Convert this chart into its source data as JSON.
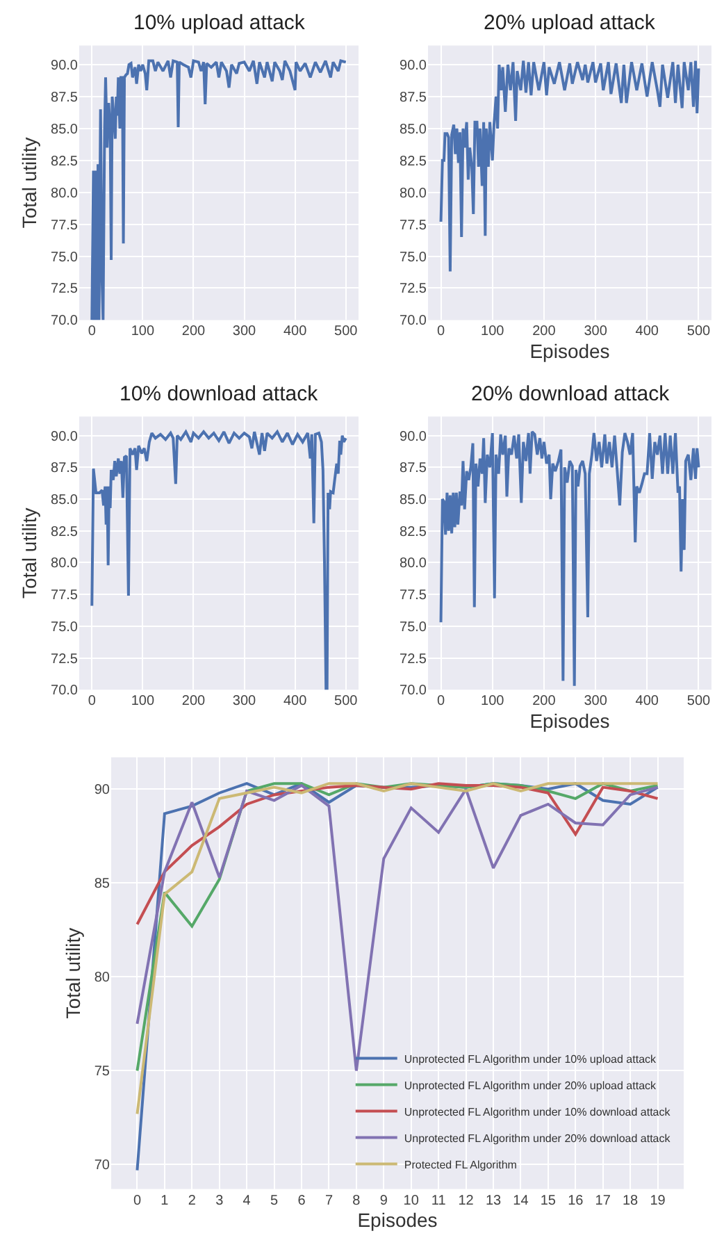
{
  "chart_data": [
    {
      "type": "line",
      "title": "10% upload attack",
      "ylabel": "Total utility",
      "xlim": [
        -25,
        525
      ],
      "xticks": [
        0,
        100,
        200,
        300,
        400,
        500
      ],
      "ylim": [
        70,
        91.5
      ],
      "yticks": [
        {
          "value": 70,
          "label": "70.0"
        },
        72.5,
        {
          "value": 75,
          "label": "75.0"
        },
        77.5,
        {
          "value": 80,
          "label": "80.0"
        },
        82.5,
        {
          "value": 85,
          "label": "85.0"
        },
        87.5,
        {
          "value": 90,
          "label": "90.0"
        }
      ],
      "grid": true,
      "legend": false,
      "series": [
        {
          "color": "#4c72b0",
          "x": [
            0,
            3,
            5,
            8,
            10,
            12,
            14,
            17,
            20,
            22,
            25,
            27,
            30,
            33,
            36,
            38,
            40,
            43,
            46,
            48,
            50,
            52,
            55,
            57,
            60,
            62,
            64,
            67,
            70,
            73,
            77,
            80,
            85,
            88,
            92,
            96,
            100,
            105,
            108,
            112,
            120,
            125,
            130,
            140,
            150,
            155,
            160,
            168,
            170,
            172,
            180,
            190,
            195,
            200,
            210,
            215,
            220,
            223,
            226,
            235,
            245,
            250,
            255,
            265,
            270,
            275,
            285,
            290,
            300,
            310,
            318,
            325,
            330,
            340,
            345,
            355,
            360,
            370,
            375,
            380,
            390,
            400,
            402,
            410,
            420,
            430,
            440,
            450,
            460,
            470,
            475,
            485,
            490,
            500
          ],
          "values": [
            70,
            81.7,
            70,
            81.7,
            70,
            82.2,
            70,
            86.5,
            73,
            70,
            85,
            89,
            83.5,
            87,
            85,
            74.7,
            87.5,
            86,
            84.2,
            87.5,
            86,
            89,
            85,
            89,
            89,
            76,
            89,
            89.2,
            89.3,
            90,
            90.1,
            89,
            89.8,
            88.5,
            90,
            89.5,
            90,
            89.3,
            88,
            90.3,
            90.3,
            89.5,
            90.2,
            89.5,
            90.3,
            89,
            90.3,
            90.2,
            85.1,
            90.2,
            90,
            89.8,
            89,
            90.3,
            90.2,
            89.5,
            90.2,
            86.9,
            90.1,
            89.8,
            90.2,
            89,
            90.2,
            89.5,
            88.2,
            90,
            89.3,
            90.1,
            90.2,
            89.5,
            90.3,
            88.5,
            90.2,
            89,
            90.2,
            88.7,
            90.2,
            89.5,
            88.8,
            90.3,
            89.5,
            88,
            90.2,
            89.5,
            90.1,
            89,
            90.2,
            89.4,
            90.3,
            89,
            90.2,
            89.5,
            90.3,
            90.2
          ]
        }
      ]
    },
    {
      "type": "line",
      "title": "20% upload attack",
      "xlabel": "Episodes",
      "xlim": [
        -25,
        525
      ],
      "xticks": [
        0,
        100,
        200,
        300,
        400,
        500
      ],
      "ylim": [
        70,
        91.5
      ],
      "yticks": [
        {
          "value": 70,
          "label": "70.0"
        },
        72.5,
        {
          "value": 75,
          "label": "75.0"
        },
        77.5,
        {
          "value": 80,
          "label": "80.0"
        },
        82.5,
        {
          "value": 85,
          "label": "85.0"
        },
        87.5,
        {
          "value": 90,
          "label": "90.0"
        }
      ],
      "grid": true,
      "legend": false,
      "series": [
        {
          "color": "#4c72b0",
          "x": [
            0,
            3,
            6,
            8,
            12,
            15,
            18,
            21,
            25,
            28,
            31,
            34,
            37,
            40,
            43,
            46,
            50,
            53,
            56,
            60,
            63,
            66,
            70,
            73,
            76,
            80,
            83,
            86,
            88,
            92,
            95,
            100,
            103,
            107,
            110,
            113,
            117,
            120,
            125,
            130,
            135,
            140,
            145,
            148,
            155,
            160,
            165,
            170,
            175,
            180,
            190,
            200,
            205,
            210,
            220,
            230,
            240,
            250,
            255,
            265,
            275,
            280,
            285,
            295,
            300,
            310,
            315,
            325,
            330,
            340,
            350,
            355,
            360,
            370,
            380,
            390,
            400,
            410,
            420,
            425,
            430,
            440,
            450,
            455,
            460,
            468,
            472,
            480,
            485,
            490,
            494,
            497,
            500
          ],
          "values": [
            77.7,
            82.5,
            82.5,
            84.6,
            84.6,
            84.3,
            73.8,
            84.5,
            85.3,
            83,
            85,
            82.3,
            84.7,
            76.5,
            85,
            83.5,
            85.5,
            81,
            83.5,
            82,
            78.3,
            85.5,
            85.5,
            82,
            85,
            80.5,
            85.5,
            76.6,
            85,
            82,
            85.5,
            82.5,
            85.3,
            87.5,
            85,
            90,
            88,
            89.8,
            86.3,
            90,
            88,
            90.2,
            85.6,
            89.5,
            88,
            90.3,
            87.8,
            90.2,
            87.6,
            90.2,
            88,
            90.2,
            87.6,
            89.8,
            88.5,
            90.2,
            88,
            90.1,
            88.5,
            90.2,
            88.8,
            90,
            88.6,
            90.2,
            88.6,
            90.1,
            88,
            90.2,
            87.7,
            90.1,
            87,
            90,
            87,
            90.2,
            88,
            90.1,
            87.5,
            90.2,
            88,
            86.7,
            90,
            87.4,
            90.2,
            87,
            90,
            86.6,
            90.2,
            88,
            90.2,
            86.7,
            90.3,
            86.2,
            89.7
          ]
        }
      ]
    },
    {
      "type": "line",
      "title": "10% download attack",
      "ylabel": "Total utility",
      "xlim": [
        -25,
        525
      ],
      "xticks": [
        0,
        100,
        200,
        300,
        400,
        500
      ],
      "ylim": [
        70,
        91.5
      ],
      "yticks": [
        {
          "value": 70,
          "label": "70.0"
        },
        72.5,
        {
          "value": 75,
          "label": "75.0"
        },
        77.5,
        {
          "value": 80,
          "label": "80.0"
        },
        82.5,
        {
          "value": 85,
          "label": "85.0"
        },
        87.5,
        {
          "value": 90,
          "label": "90.0"
        }
      ],
      "grid": true,
      "legend": false,
      "series": [
        {
          "color": "#4c72b0",
          "x": [
            0,
            3,
            8,
            15,
            20,
            23,
            26,
            28,
            30,
            32,
            34,
            36,
            38,
            42,
            45,
            48,
            52,
            55,
            58,
            61,
            64,
            68,
            72,
            75,
            80,
            85,
            88,
            92,
            98,
            103,
            108,
            113,
            118,
            125,
            135,
            145,
            155,
            160,
            165,
            168,
            175,
            185,
            195,
            200,
            210,
            220,
            230,
            240,
            250,
            260,
            270,
            280,
            290,
            300,
            310,
            315,
            320,
            330,
            335,
            340,
            345,
            355,
            365,
            375,
            385,
            395,
            405,
            415,
            425,
            430,
            433,
            437,
            440,
            447,
            452,
            455,
            458,
            461,
            463,
            465,
            468,
            470,
            475,
            478,
            482,
            485,
            488,
            490,
            493,
            496,
            500
          ],
          "values": [
            76.6,
            87.4,
            85.5,
            85.5,
            85.7,
            84.5,
            86,
            83,
            86,
            79.8,
            86,
            84.3,
            87.3,
            86.5,
            88,
            86.8,
            88.2,
            87,
            88,
            85.1,
            88.3,
            88.4,
            77.4,
            89,
            88.5,
            89,
            87.3,
            89.2,
            88.6,
            89,
            88,
            89.5,
            90.2,
            89.8,
            90.1,
            89.7,
            90.2,
            89.8,
            86.2,
            90,
            89.7,
            90.3,
            89.5,
            90.2,
            89.8,
            90.3,
            89.8,
            90.2,
            89.6,
            90.3,
            89.4,
            90.2,
            89.8,
            90.2,
            89.9,
            89,
            90.3,
            88.5,
            90.2,
            88.8,
            90.2,
            89.8,
            90.3,
            89.5,
            90.2,
            89.3,
            90.1,
            89.5,
            90.2,
            88.2,
            90.1,
            83.1,
            90.1,
            90.2,
            89.5,
            87.3,
            80,
            70,
            70,
            85.5,
            84.2,
            85.6,
            85.5,
            86.5,
            87.8,
            87,
            89.6,
            88.5,
            90,
            89.5,
            89.8
          ]
        }
      ]
    },
    {
      "type": "line",
      "title": "20% download attack",
      "xlabel": "Episodes",
      "xlim": [
        -25,
        525
      ],
      "xticks": [
        0,
        100,
        200,
        300,
        400,
        500
      ],
      "ylim": [
        70,
        91.5
      ],
      "yticks": [
        {
          "value": 70,
          "label": "70.0"
        },
        72.5,
        {
          "value": 75,
          "label": "75.0"
        },
        77.5,
        {
          "value": 80,
          "label": "80.0"
        },
        82.5,
        {
          "value": 85,
          "label": "85.0"
        },
        87.5,
        {
          "value": 90,
          "label": "90.0"
        }
      ],
      "grid": true,
      "legend": false,
      "series": [
        {
          "color": "#4c72b0",
          "x": [
            0,
            3,
            6,
            9,
            12,
            15,
            18,
            21,
            24,
            27,
            30,
            33,
            37,
            40,
            43,
            46,
            50,
            54,
            58,
            62,
            65,
            68,
            72,
            76,
            80,
            83,
            86,
            90,
            95,
            100,
            104,
            107,
            112,
            116,
            120,
            125,
            128,
            132,
            137,
            142,
            147,
            151,
            156,
            160,
            165,
            170,
            173,
            177,
            182,
            187,
            192,
            196,
            200,
            205,
            210,
            213,
            217,
            222,
            228,
            233,
            237,
            240,
            245,
            250,
            255,
            259,
            262,
            266,
            270,
            275,
            280,
            285,
            288,
            293,
            297,
            302,
            307,
            312,
            318,
            322,
            327,
            332,
            337,
            342,
            347,
            352,
            357,
            362,
            367,
            372,
            377,
            380,
            385,
            390,
            395,
            400,
            405,
            410,
            415,
            420,
            425,
            430,
            435,
            440,
            445,
            450,
            455,
            460,
            463,
            466,
            469,
            472,
            475,
            480,
            485,
            490,
            494,
            497,
            500
          ],
          "values": [
            75.3,
            85,
            84.8,
            82.2,
            85.5,
            82.5,
            85.3,
            82.3,
            85.5,
            82.8,
            85.5,
            83,
            85.6,
            84.5,
            88,
            84.2,
            87.2,
            86.5,
            87.5,
            89.4,
            76.5,
            87.8,
            86,
            88.2,
            87,
            89.8,
            84.7,
            88.5,
            87.5,
            90.2,
            77.2,
            88.5,
            87,
            90.1,
            88.5,
            90,
            85.2,
            89,
            88.5,
            90,
            88.2,
            90.1,
            84.7,
            89.5,
            88,
            90.2,
            87,
            90.3,
            90.1,
            88.5,
            89.8,
            88.2,
            89.5,
            87.8,
            88.5,
            85,
            87.8,
            87.2,
            88,
            88.9,
            70.7,
            87.5,
            86.3,
            88,
            87.6,
            70.3,
            87.3,
            86,
            87.6,
            88,
            87,
            75.7,
            87,
            88.5,
            90.2,
            88,
            89.5,
            87.5,
            90.1,
            87.8,
            89.5,
            87.5,
            90,
            87.3,
            84.5,
            88.7,
            90.2,
            89.5,
            88.5,
            90.2,
            81.6,
            86,
            85.5,
            86.2,
            87,
            87,
            90.2,
            86.6,
            89.5,
            88.5,
            90,
            87,
            90.2,
            87,
            90,
            87,
            90.2,
            85.5,
            86,
            79.3,
            85,
            81,
            88,
            88.5,
            86.5,
            89,
            86.6,
            89,
            87.5
          ]
        }
      ]
    },
    {
      "type": "line",
      "xlabel": "Episodes",
      "ylabel": "Total utility",
      "xlim": [
        -0.95,
        19.95
      ],
      "xticks": [
        0,
        1,
        2,
        3,
        4,
        5,
        6,
        7,
        8,
        9,
        10,
        11,
        12,
        13,
        14,
        15,
        16,
        17,
        18,
        19
      ],
      "ylim": [
        68.7,
        91.7
      ],
      "yticks": [
        70,
        75,
        80,
        85,
        90
      ],
      "grid": true,
      "legend": "bottom right",
      "x": [
        0,
        1,
        2,
        3,
        4,
        5,
        6,
        7,
        8,
        9,
        10,
        11,
        12,
        13,
        14,
        15,
        16,
        17,
        18,
        19
      ],
      "series": [
        {
          "name": "Unprotected FL Algorithm under 10% upload attack",
          "color": "#4c72b0",
          "values": [
            69.7,
            88.7,
            89.1,
            89.8,
            90.3,
            89.7,
            90.3,
            89.3,
            90.2,
            90.1,
            90.1,
            90.2,
            90.1,
            90.3,
            90.2,
            90.0,
            90.3,
            89.4,
            89.2,
            90.1
          ]
        },
        {
          "name": "Unprotected FL Algorithm under 20% upload attack",
          "color": "#55a868",
          "values": [
            75.0,
            84.5,
            82.7,
            85.2,
            89.9,
            90.3,
            90.3,
            89.7,
            90.3,
            90.1,
            90.3,
            90.2,
            90.1,
            90.3,
            90.2,
            89.9,
            89.5,
            90.3,
            89.9,
            90.2
          ]
        },
        {
          "name": "Unprotected FL Algorithm under 10% download attack",
          "color": "#c44e52",
          "values": [
            82.8,
            85.6,
            87.0,
            88.0,
            89.2,
            89.7,
            89.9,
            90.1,
            90.2,
            90.1,
            90.0,
            90.3,
            90.2,
            90.2,
            90.1,
            89.8,
            87.6,
            90.1,
            89.9,
            89.5
          ]
        },
        {
          "name": "Unprotected FL Algorithm under 20% download attack",
          "color": "#8172b2",
          "values": [
            77.5,
            85.6,
            89.3,
            85.3,
            89.9,
            89.4,
            90.2,
            89.1,
            75.0,
            86.3,
            89.0,
            87.7,
            90.0,
            85.8,
            88.6,
            89.2,
            88.2,
            88.1,
            89.7,
            90.1
          ]
        },
        {
          "name": "Protected FL Algorithm",
          "color": "#ccb974",
          "values": [
            72.7,
            84.4,
            85.6,
            89.5,
            89.8,
            90.1,
            89.8,
            90.3,
            90.3,
            89.9,
            90.3,
            90.1,
            89.9,
            90.3,
            89.9,
            90.3,
            90.3,
            90.3,
            90.3,
            90.3
          ]
        }
      ]
    }
  ]
}
